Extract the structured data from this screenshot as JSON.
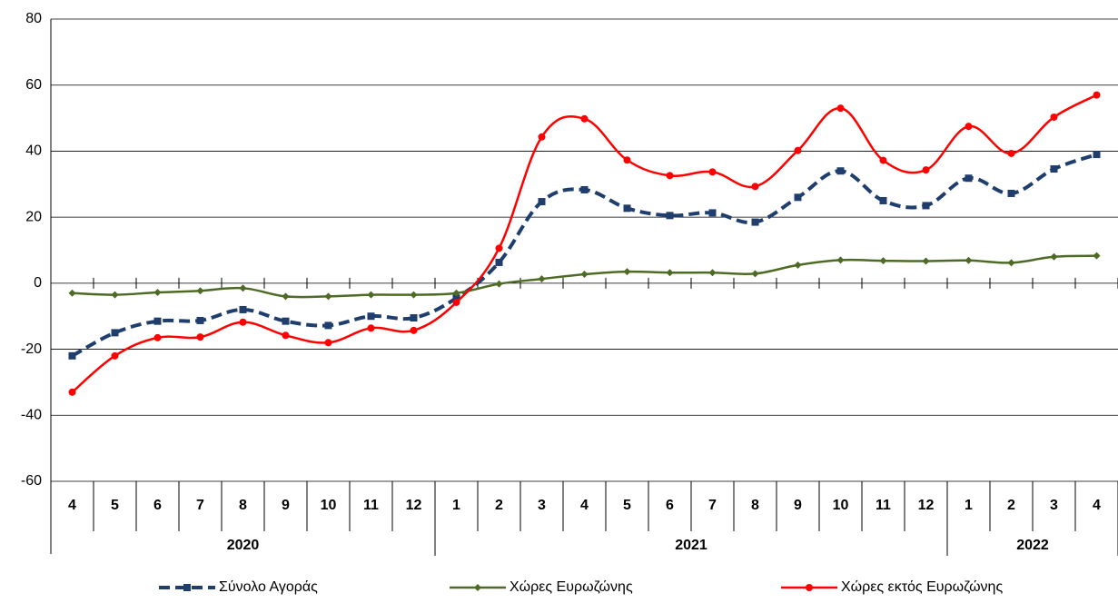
{
  "chart_data": {
    "type": "line",
    "categories": [
      "4",
      "5",
      "6",
      "7",
      "8",
      "9",
      "10",
      "11",
      "12",
      "1",
      "2",
      "3",
      "4",
      "5",
      "6",
      "7",
      "8",
      "9",
      "10",
      "11",
      "12",
      "1",
      "2",
      "3",
      "4"
    ],
    "category_groups": [
      {
        "name": "2020",
        "count": 9
      },
      {
        "name": "2021",
        "count": 12
      },
      {
        "name": "2022",
        "count": 4
      }
    ],
    "series": [
      {
        "name": "Σύνολο Αγοράς",
        "color": "#1f3e6e",
        "marker": "square",
        "dashed": true,
        "values": [
          -22,
          -15,
          -11.5,
          -11.3,
          -8,
          -11.5,
          -12.8,
          -10,
          -10.5,
          -4.5,
          6.3,
          24.7,
          28.3,
          22.7,
          20.5,
          21.3,
          18.5,
          26,
          34,
          25,
          23.5,
          31.8,
          27.2,
          34.6,
          39
        ]
      },
      {
        "name": "Χώρες Ευρωζώνης",
        "color": "#4e6b26",
        "marker": "diamond",
        "dashed": false,
        "values": [
          -3,
          -3.5,
          -2.8,
          -2.3,
          -1.5,
          -4,
          -4,
          -3.5,
          -3.5,
          -3,
          -0.2,
          1.3,
          2.7,
          3.5,
          3.2,
          3.2,
          2.9,
          5.5,
          7,
          6.8,
          6.7,
          6.9,
          6.2,
          8,
          8.3
        ]
      },
      {
        "name": "Χώρες εκτός Ευρωζώνης",
        "color": "#ff0000",
        "marker": "circle",
        "dashed": false,
        "values": [
          -33,
          -22,
          -16.5,
          -16.3,
          -11.8,
          -15.8,
          -18,
          -13.6,
          -14.3,
          -5.8,
          10.6,
          44.3,
          49.8,
          37.3,
          32.6,
          33.7,
          29.3,
          40.2,
          53,
          37.2,
          34.3,
          47.5,
          39.3,
          50.3,
          57
        ]
      }
    ],
    "ylim": [
      -60,
      80
    ],
    "yticks": [
      -60,
      -40,
      -20,
      0,
      20,
      40,
      60,
      80
    ],
    "grid": true,
    "legend": "bottom"
  }
}
